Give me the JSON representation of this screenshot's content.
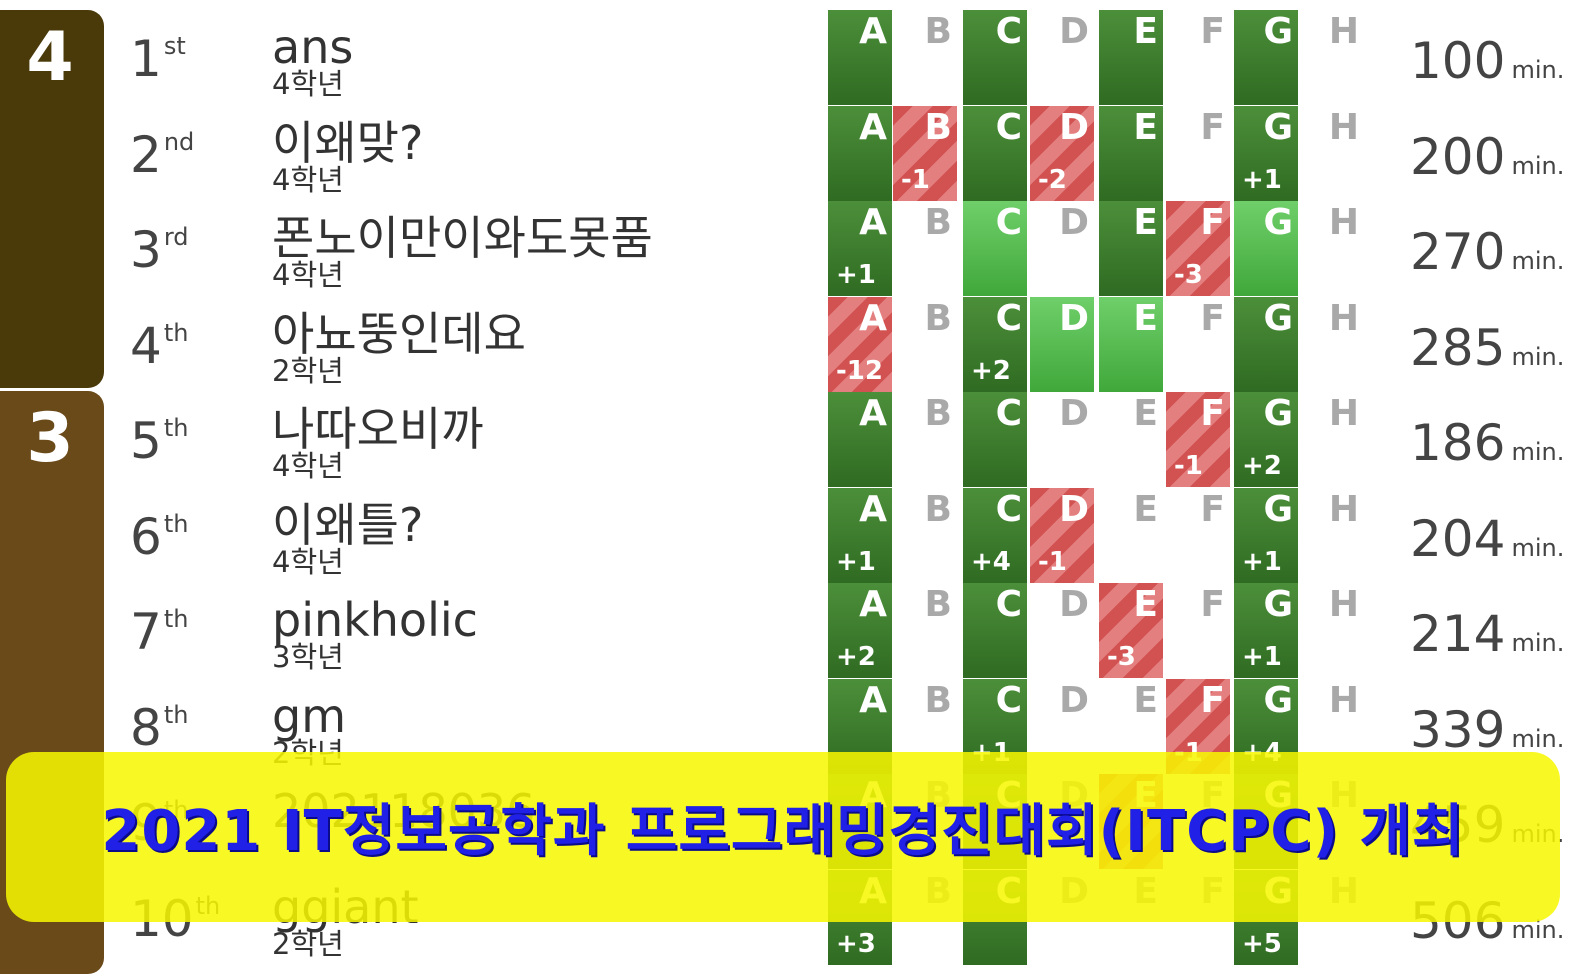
{
  "groups": [
    {
      "score": "4",
      "color": "#4a3a0a"
    },
    {
      "score": "3",
      "color": "#6b4a1a"
    }
  ],
  "problem_letters": [
    "A",
    "B",
    "C",
    "D",
    "E",
    "F",
    "G",
    "H"
  ],
  "time_unit": "min.",
  "colors": {
    "solved": "#3f7f2f",
    "first_solve": "#56c052",
    "failed": "#d25252",
    "banner_bg": "#f7f700",
    "banner_text": "#2020e6"
  },
  "rows": [
    {
      "rank": "1",
      "suffix": "st",
      "team": "ans",
      "grade": "4학년",
      "time": "100",
      "cells": [
        {
          "status": "solved",
          "tries": ""
        },
        {
          "status": "none",
          "tries": ""
        },
        {
          "status": "solved",
          "tries": ""
        },
        {
          "status": "none",
          "tries": ""
        },
        {
          "status": "solved",
          "tries": ""
        },
        {
          "status": "none",
          "tries": ""
        },
        {
          "status": "solved",
          "tries": ""
        },
        {
          "status": "none",
          "tries": ""
        }
      ]
    },
    {
      "rank": "2",
      "suffix": "nd",
      "team": "이왜맞?",
      "grade": "4학년",
      "time": "200",
      "cells": [
        {
          "status": "solved",
          "tries": ""
        },
        {
          "status": "failed",
          "tries": "-1"
        },
        {
          "status": "solved",
          "tries": ""
        },
        {
          "status": "failed",
          "tries": "-2"
        },
        {
          "status": "solved",
          "tries": ""
        },
        {
          "status": "none",
          "tries": ""
        },
        {
          "status": "solved",
          "tries": "+1"
        },
        {
          "status": "none",
          "tries": ""
        }
      ]
    },
    {
      "rank": "3",
      "suffix": "rd",
      "team": "폰노이만이와도못품",
      "grade": "4학년",
      "time": "270",
      "cells": [
        {
          "status": "solved",
          "tries": "+1"
        },
        {
          "status": "none",
          "tries": ""
        },
        {
          "status": "first",
          "tries": ""
        },
        {
          "status": "none",
          "tries": ""
        },
        {
          "status": "solved",
          "tries": ""
        },
        {
          "status": "failed",
          "tries": "-3"
        },
        {
          "status": "first",
          "tries": ""
        },
        {
          "status": "none",
          "tries": ""
        }
      ]
    },
    {
      "rank": "4",
      "suffix": "th",
      "team": "아뇨뚱인데요",
      "grade": "2학년",
      "time": "285",
      "cells": [
        {
          "status": "failed",
          "tries": "-12"
        },
        {
          "status": "none",
          "tries": ""
        },
        {
          "status": "solved",
          "tries": "+2"
        },
        {
          "status": "first",
          "tries": ""
        },
        {
          "status": "first",
          "tries": ""
        },
        {
          "status": "none",
          "tries": ""
        },
        {
          "status": "solved",
          "tries": ""
        },
        {
          "status": "none",
          "tries": ""
        }
      ]
    },
    {
      "rank": "5",
      "suffix": "th",
      "team": "나따오비까",
      "grade": "4학년",
      "time": "186",
      "cells": [
        {
          "status": "solved",
          "tries": ""
        },
        {
          "status": "none",
          "tries": ""
        },
        {
          "status": "solved",
          "tries": ""
        },
        {
          "status": "none",
          "tries": ""
        },
        {
          "status": "none",
          "tries": ""
        },
        {
          "status": "failed",
          "tries": "-1"
        },
        {
          "status": "solved",
          "tries": "+2"
        },
        {
          "status": "none",
          "tries": ""
        }
      ]
    },
    {
      "rank": "6",
      "suffix": "th",
      "team": "이왜틀?",
      "grade": "4학년",
      "time": "204",
      "cells": [
        {
          "status": "solved",
          "tries": "+1"
        },
        {
          "status": "none",
          "tries": ""
        },
        {
          "status": "solved",
          "tries": "+4"
        },
        {
          "status": "failed",
          "tries": "-1"
        },
        {
          "status": "none",
          "tries": ""
        },
        {
          "status": "none",
          "tries": ""
        },
        {
          "status": "solved",
          "tries": "+1"
        },
        {
          "status": "none",
          "tries": ""
        }
      ]
    },
    {
      "rank": "7",
      "suffix": "th",
      "team": "pinkholic",
      "grade": "3학년",
      "time": "214",
      "cells": [
        {
          "status": "solved",
          "tries": "+2"
        },
        {
          "status": "none",
          "tries": ""
        },
        {
          "status": "solved",
          "tries": ""
        },
        {
          "status": "none",
          "tries": ""
        },
        {
          "status": "failed",
          "tries": "-3"
        },
        {
          "status": "none",
          "tries": ""
        },
        {
          "status": "solved",
          "tries": "+1"
        },
        {
          "status": "none",
          "tries": ""
        }
      ]
    },
    {
      "rank": "8",
      "suffix": "th",
      "team": "gm",
      "grade": "2학년",
      "time": "339",
      "cells": [
        {
          "status": "solved",
          "tries": ""
        },
        {
          "status": "none",
          "tries": ""
        },
        {
          "status": "solved",
          "tries": "+1"
        },
        {
          "status": "none",
          "tries": ""
        },
        {
          "status": "none",
          "tries": ""
        },
        {
          "status": "failed",
          "tries": "-1"
        },
        {
          "status": "solved",
          "tries": "+4"
        },
        {
          "status": "none",
          "tries": ""
        }
      ]
    },
    {
      "rank": "9",
      "suffix": "th",
      "team": "202118036",
      "grade": "",
      "time": "459",
      "cells": [
        {
          "status": "solved",
          "tries": ""
        },
        {
          "status": "none",
          "tries": ""
        },
        {
          "status": "solved",
          "tries": ""
        },
        {
          "status": "none",
          "tries": ""
        },
        {
          "status": "failed",
          "tries": ""
        },
        {
          "status": "none",
          "tries": ""
        },
        {
          "status": "solved",
          "tries": ""
        },
        {
          "status": "none",
          "tries": ""
        }
      ]
    },
    {
      "rank": "10",
      "suffix": "th",
      "team": "ggiant",
      "grade": "2학년",
      "time": "506",
      "cells": [
        {
          "status": "solved",
          "tries": "+3"
        },
        {
          "status": "none",
          "tries": ""
        },
        {
          "status": "solved",
          "tries": ""
        },
        {
          "status": "none",
          "tries": ""
        },
        {
          "status": "none",
          "tries": ""
        },
        {
          "status": "none",
          "tries": ""
        },
        {
          "status": "solved",
          "tries": "+5"
        },
        {
          "status": "none",
          "tries": ""
        }
      ]
    }
  ],
  "banner": {
    "text": "2021 IT정보공학과 프로그래밍경진대회(ITCPC) 개최"
  }
}
